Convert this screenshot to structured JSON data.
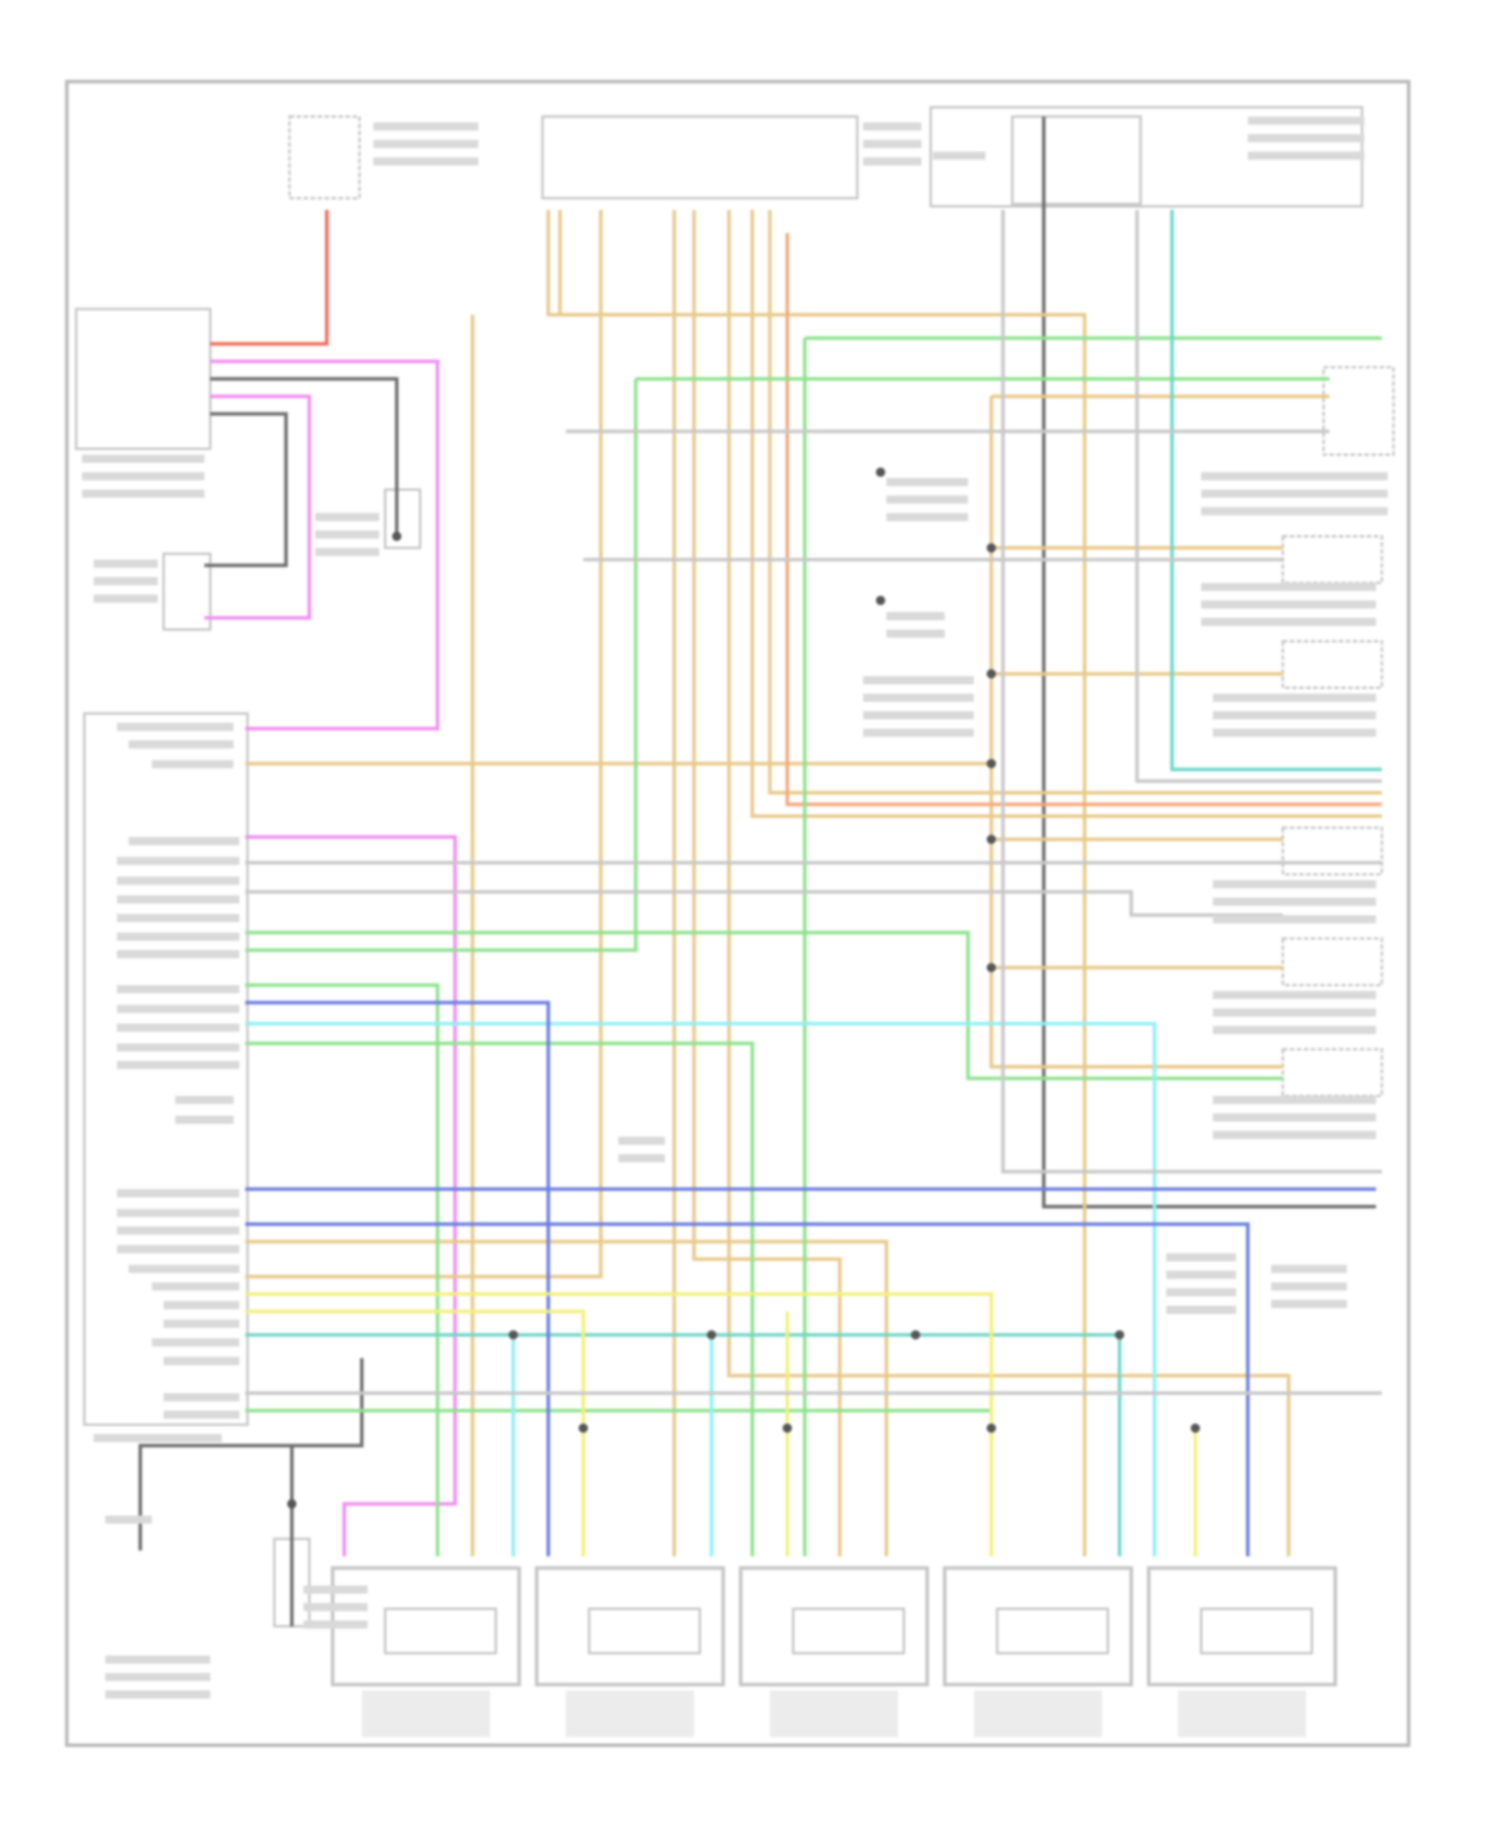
{
  "diagram": {
    "type": "wiring-diagram",
    "text_legible": false,
    "wire_colors": {
      "red": "#f26b5b",
      "pink": "#f08ef0",
      "gray": "#6e6e6e",
      "tan": "#e8c98a",
      "orange": "#f5a77a",
      "green": "#8fe28f",
      "teal": "#6fd6c8",
      "cyan": "#8ff0f5",
      "blue": "#6d7ee0",
      "yellow": "#f2f07a",
      "lightgray": "#c8c8c8"
    },
    "frame_color": "#b8b8b8",
    "bottom_module_count": 5
  }
}
